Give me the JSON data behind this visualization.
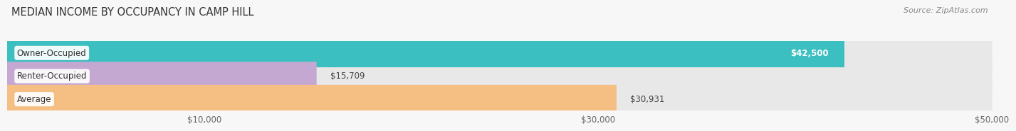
{
  "title": "MEDIAN INCOME BY OCCUPANCY IN CAMP HILL",
  "source": "Source: ZipAtlas.com",
  "categories": [
    "Owner-Occupied",
    "Renter-Occupied",
    "Average"
  ],
  "values": [
    42500,
    15709,
    30931
  ],
  "bar_colors": [
    "#3bbfc0",
    "#c4a8d2",
    "#f5be82"
  ],
  "bar_bg_color": "#e8e8e8",
  "value_labels": [
    "$42,500",
    "$15,709",
    "$30,931"
  ],
  "value_inside": [
    true,
    false,
    false
  ],
  "xlim": [
    0,
    50000
  ],
  "xticks": [
    10000,
    30000,
    50000
  ],
  "xtick_labels": [
    "$10,000",
    "$30,000",
    "$50,000"
  ],
  "title_fontsize": 10.5,
  "source_fontsize": 8,
  "bar_height": 0.62,
  "bg_color": "#f7f7f7",
  "label_bg_color": "#ffffff",
  "grid_color": "#d0d0d0",
  "title_color": "#333333",
  "source_color": "#888888",
  "tick_color": "#666666",
  "cat_label_fontsize": 8.5,
  "val_label_fontsize": 8.5
}
